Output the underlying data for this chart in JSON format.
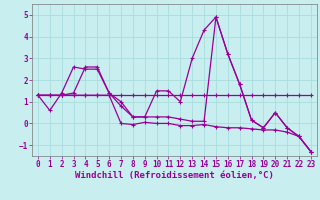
{
  "xlabel": "Windchill (Refroidissement éolien,°C)",
  "bg_color": "#c8eef0",
  "line_color": "#990099",
  "grid_color": "#aadddd",
  "xlim": [
    -0.5,
    23.5
  ],
  "ylim": [
    -1.5,
    5.5
  ],
  "yticks": [
    -1,
    0,
    1,
    2,
    3,
    4,
    5
  ],
  "xticks": [
    0,
    1,
    2,
    3,
    4,
    5,
    6,
    7,
    8,
    9,
    10,
    11,
    12,
    13,
    14,
    15,
    16,
    17,
    18,
    19,
    20,
    21,
    22,
    23
  ],
  "tick_fontsize": 5.5,
  "xlabel_fontsize": 6.5,
  "linewidth": 0.9,
  "markersize": 2.8,
  "s1_y": [
    1.3,
    1.3,
    1.3,
    1.3,
    1.3,
    1.3,
    1.3,
    1.3,
    1.3,
    1.3,
    1.3,
    1.3,
    1.3,
    1.3,
    1.3,
    1.3,
    1.3,
    1.3,
    1.3,
    1.3,
    1.3,
    1.3,
    1.3,
    1.3
  ],
  "s2_y": [
    1.3,
    0.6,
    1.4,
    2.6,
    2.5,
    2.5,
    1.4,
    0.8,
    0.3,
    0.3,
    1.5,
    1.5,
    1.0,
    3.0,
    4.3,
    4.9,
    3.2,
    1.8,
    0.15,
    -0.2,
    0.5,
    -0.2,
    -0.6,
    -1.3
  ],
  "s3_y": [
    1.3,
    1.3,
    1.3,
    1.4,
    2.6,
    2.6,
    1.4,
    1.0,
    0.3,
    0.3,
    0.3,
    0.3,
    0.2,
    0.1,
    0.1,
    4.9,
    3.2,
    1.8,
    0.15,
    -0.2,
    0.5,
    -0.2,
    -0.6,
    -1.3
  ],
  "s4_y": [
    1.3,
    1.3,
    1.3,
    1.3,
    1.3,
    1.3,
    1.3,
    0.0,
    -0.05,
    0.05,
    0.0,
    0.0,
    -0.1,
    -0.1,
    -0.05,
    -0.15,
    -0.2,
    -0.2,
    -0.25,
    -0.3,
    -0.3,
    -0.4,
    -0.6,
    -1.3
  ]
}
